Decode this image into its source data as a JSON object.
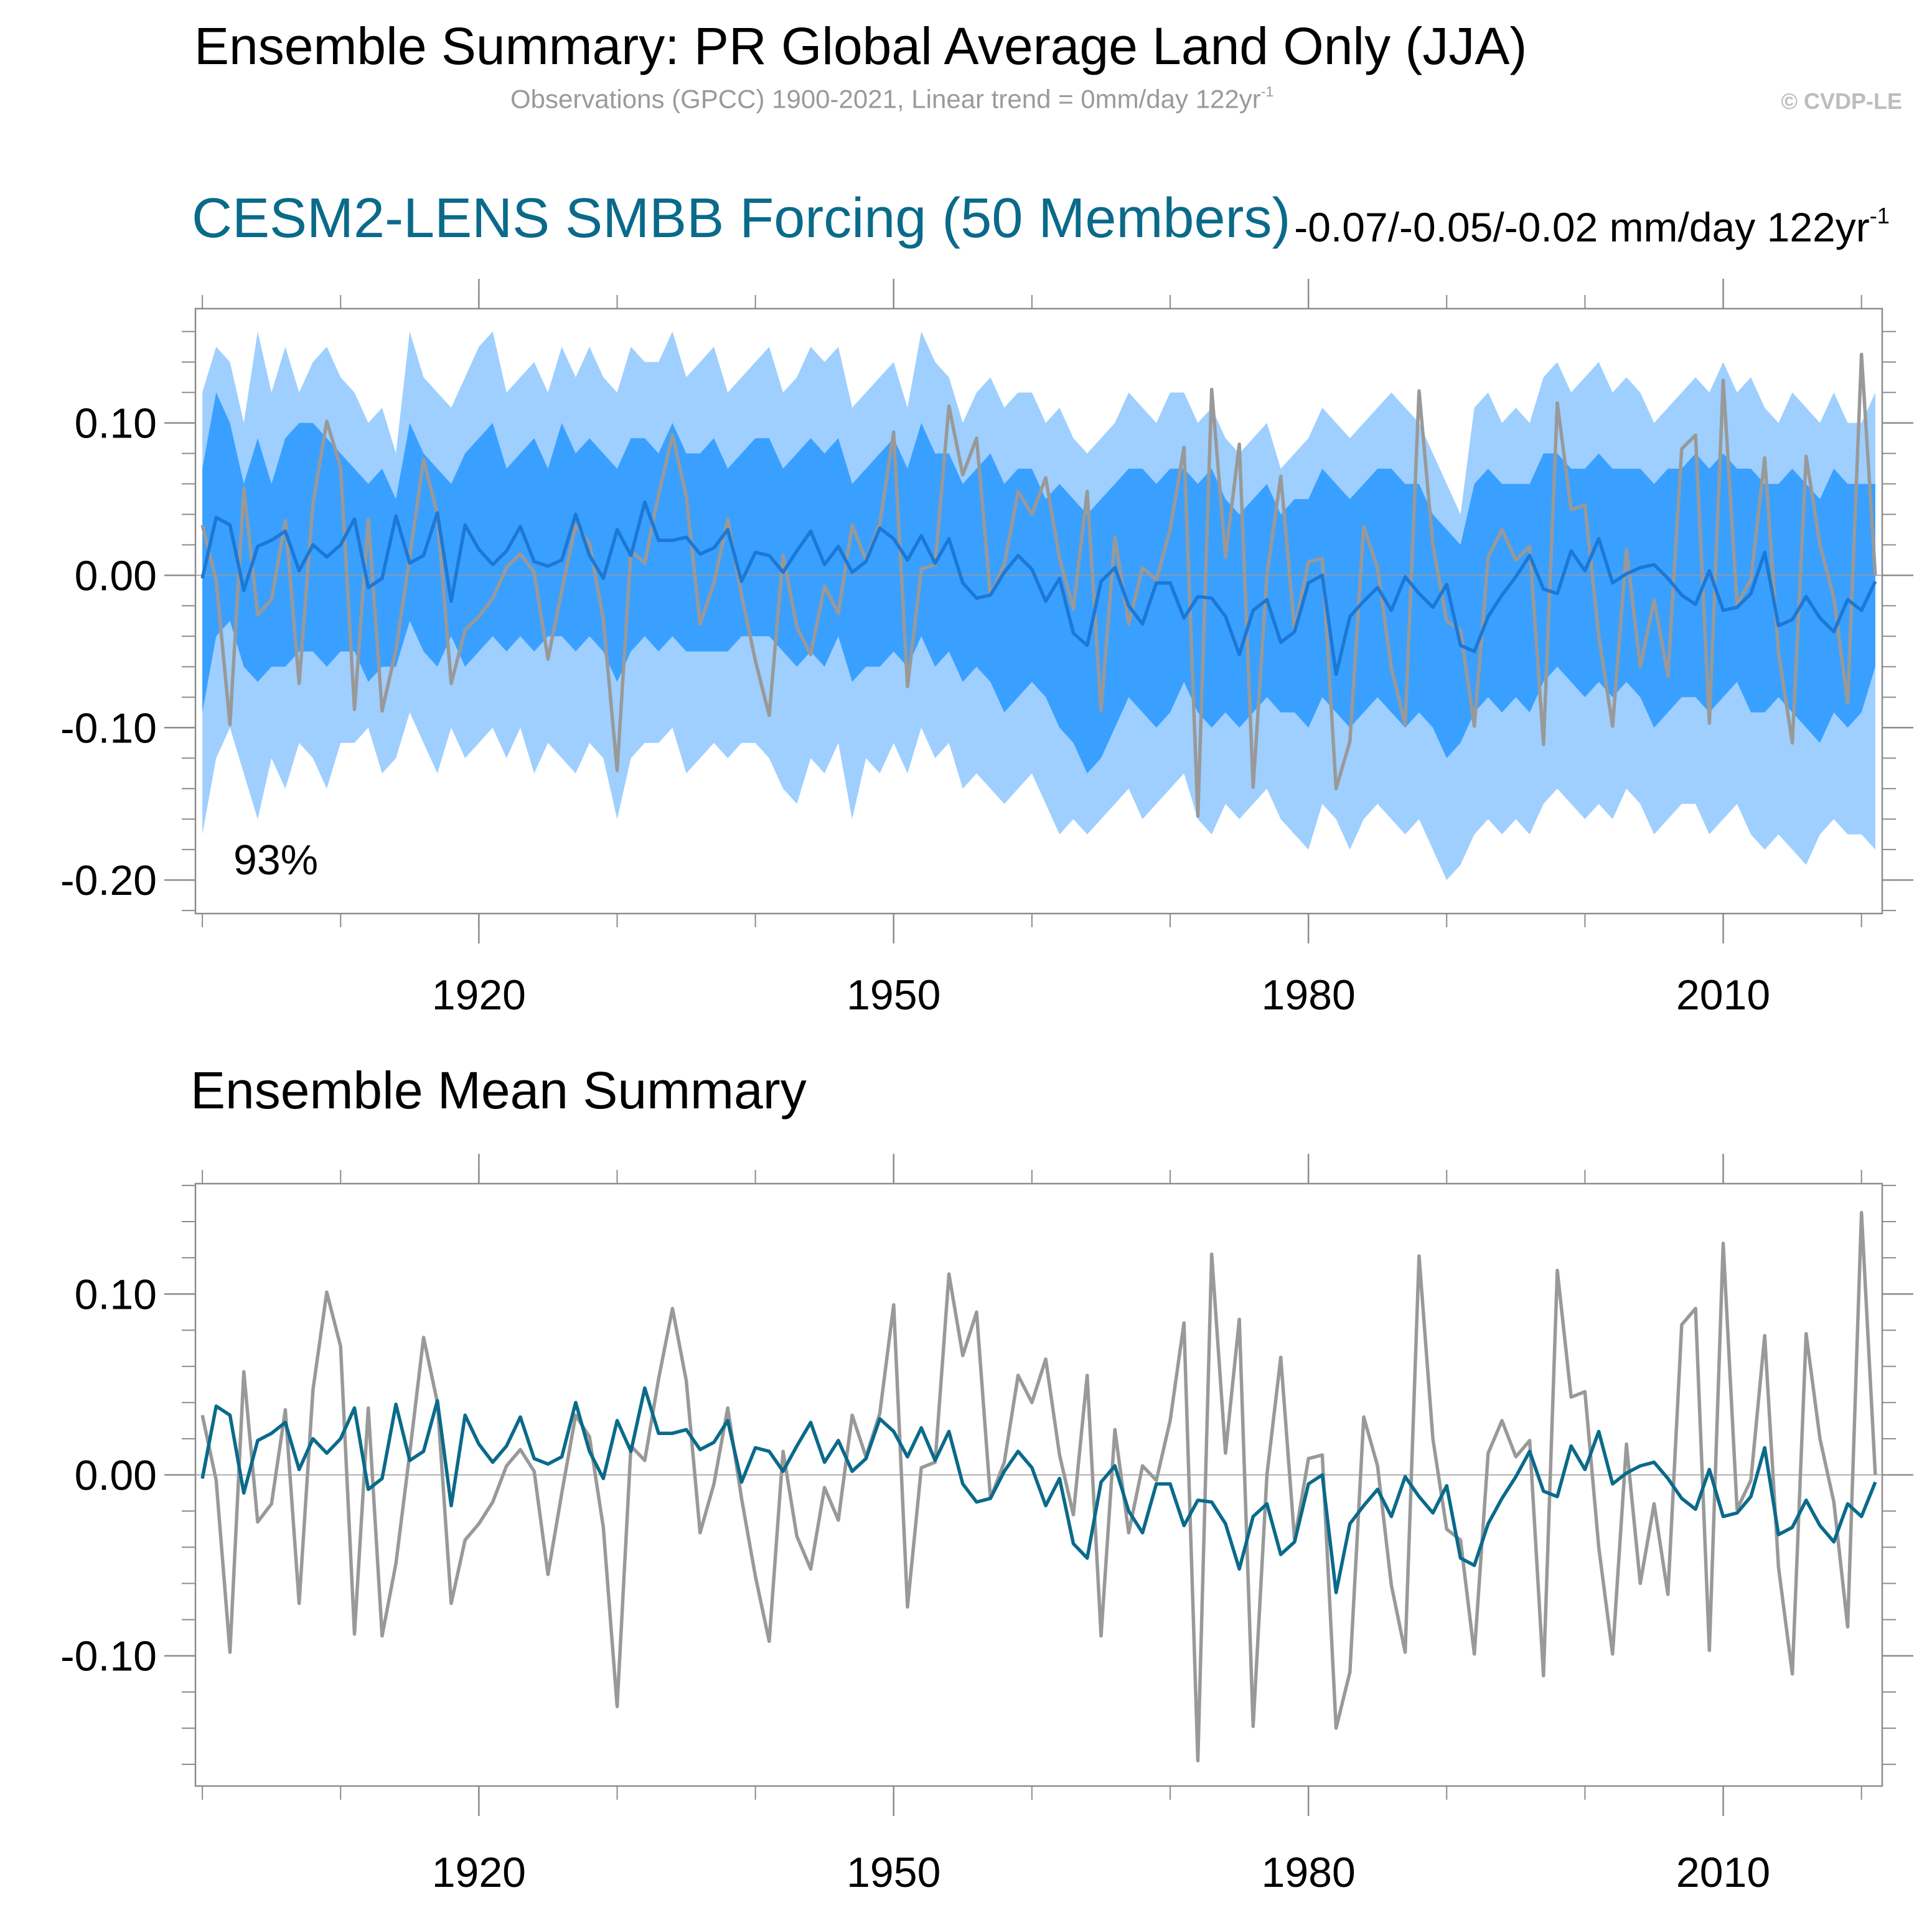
{
  "header": {
    "title": "Ensemble Summary: PR Global Average Land Only (JJA)",
    "subtitle": "Observations (GPCC) 1900-2021, Linear trend = 0mm/day 122yr",
    "subtitle_sup": "-1",
    "copyright": "© CVDP-LE"
  },
  "colors": {
    "band_outer": "#9ecfff",
    "band_inner": "#3aa0ff",
    "ens_mean_top": "#1c78d6",
    "ens_mean_bottom": "#0a6a8a",
    "obs": "#999999",
    "title_blue": "#0a6a8a"
  },
  "chart_data": [
    {
      "type": "area",
      "title": "CESM2-LENS SMBB Forcing (50 Members)",
      "trend_label": "-0.07/-0.05/-0.02 mm/day 122yr",
      "trend_sup": "-1",
      "annotation": "93%",
      "x_start": 1900,
      "x_end": 2021,
      "xlim": [
        1899.5,
        2021.5
      ],
      "ylim": [
        -0.222,
        0.175
      ],
      "yticks": [
        0.1,
        0.0,
        -0.1,
        -0.2
      ],
      "ytick_labels": [
        "0.10",
        "0.00",
        "-0.10",
        "-0.20"
      ],
      "xticks": [
        1920,
        1950,
        1980,
        2010
      ],
      "xtick_labels": [
        "1920",
        "1950",
        "1980",
        "2010"
      ],
      "series": [
        {
          "name": "ensemble-max",
          "role": "band_outer_upper",
          "values": [
            0.12,
            0.15,
            0.14,
            0.1,
            0.16,
            0.12,
            0.15,
            0.12,
            0.14,
            0.15,
            0.13,
            0.12,
            0.1,
            0.11,
            0.08,
            0.16,
            0.13,
            0.12,
            0.11,
            0.13,
            0.15,
            0.16,
            0.12,
            0.13,
            0.14,
            0.12,
            0.15,
            0.13,
            0.15,
            0.13,
            0.12,
            0.15,
            0.14,
            0.14,
            0.16,
            0.13,
            0.14,
            0.15,
            0.12,
            0.13,
            0.14,
            0.15,
            0.12,
            0.13,
            0.15,
            0.14,
            0.15,
            0.11,
            0.12,
            0.13,
            0.14,
            0.11,
            0.16,
            0.14,
            0.13,
            0.1,
            0.12,
            0.13,
            0.11,
            0.12,
            0.12,
            0.1,
            0.11,
            0.09,
            0.08,
            0.09,
            0.1,
            0.12,
            0.11,
            0.1,
            0.12,
            0.12,
            0.1,
            0.11,
            0.09,
            0.08,
            0.09,
            0.1,
            0.07,
            0.08,
            0.09,
            0.11,
            0.1,
            0.09,
            0.1,
            0.11,
            0.12,
            0.11,
            0.1,
            0.08,
            0.06,
            0.04,
            0.11,
            0.12,
            0.1,
            0.11,
            0.1,
            0.13,
            0.14,
            0.12,
            0.13,
            0.14,
            0.12,
            0.13,
            0.12,
            0.1,
            0.11,
            0.12,
            0.13,
            0.12,
            0.14,
            0.12,
            0.13,
            0.11,
            0.1,
            0.12,
            0.11,
            0.1,
            0.12,
            0.1,
            0.1,
            0.12
          ]
        },
        {
          "name": "ensemble-p90",
          "role": "band_inner_upper",
          "values": [
            0.07,
            0.12,
            0.1,
            0.06,
            0.09,
            0.06,
            0.09,
            0.1,
            0.1,
            0.09,
            0.08,
            0.07,
            0.06,
            0.07,
            0.05,
            0.1,
            0.08,
            0.07,
            0.06,
            0.08,
            0.09,
            0.1,
            0.07,
            0.08,
            0.09,
            0.07,
            0.1,
            0.08,
            0.09,
            0.08,
            0.07,
            0.09,
            0.09,
            0.08,
            0.1,
            0.08,
            0.08,
            0.09,
            0.07,
            0.08,
            0.09,
            0.09,
            0.07,
            0.08,
            0.09,
            0.08,
            0.09,
            0.06,
            0.07,
            0.08,
            0.09,
            0.07,
            0.1,
            0.08,
            0.08,
            0.06,
            0.07,
            0.08,
            0.06,
            0.07,
            0.07,
            0.05,
            0.06,
            0.05,
            0.04,
            0.05,
            0.06,
            0.07,
            0.07,
            0.06,
            0.07,
            0.07,
            0.06,
            0.07,
            0.05,
            0.04,
            0.05,
            0.06,
            0.04,
            0.05,
            0.05,
            0.07,
            0.06,
            0.05,
            0.06,
            0.07,
            0.07,
            0.06,
            0.06,
            0.04,
            0.03,
            0.02,
            0.06,
            0.07,
            0.06,
            0.06,
            0.06,
            0.08,
            0.08,
            0.07,
            0.07,
            0.08,
            0.07,
            0.07,
            0.07,
            0.06,
            0.07,
            0.07,
            0.08,
            0.07,
            0.08,
            0.07,
            0.07,
            0.06,
            0.06,
            0.07,
            0.06,
            0.05,
            0.07,
            0.06,
            0.06,
            0.06
          ]
        },
        {
          "name": "ensemble-p10",
          "role": "band_inner_lower",
          "values": [
            -0.09,
            -0.04,
            -0.03,
            -0.06,
            -0.07,
            -0.06,
            -0.06,
            -0.05,
            -0.05,
            -0.06,
            -0.05,
            -0.05,
            -0.07,
            -0.06,
            -0.06,
            -0.03,
            -0.05,
            -0.06,
            -0.04,
            -0.06,
            -0.05,
            -0.04,
            -0.05,
            -0.04,
            -0.05,
            -0.04,
            -0.04,
            -0.05,
            -0.04,
            -0.05,
            -0.07,
            -0.05,
            -0.04,
            -0.05,
            -0.04,
            -0.05,
            -0.05,
            -0.05,
            -0.05,
            -0.04,
            -0.04,
            -0.04,
            -0.05,
            -0.06,
            -0.05,
            -0.06,
            -0.04,
            -0.07,
            -0.06,
            -0.06,
            -0.05,
            -0.06,
            -0.04,
            -0.06,
            -0.05,
            -0.07,
            -0.06,
            -0.07,
            -0.09,
            -0.08,
            -0.07,
            -0.08,
            -0.1,
            -0.11,
            -0.13,
            -0.12,
            -0.1,
            -0.08,
            -0.09,
            -0.1,
            -0.09,
            -0.07,
            -0.09,
            -0.1,
            -0.09,
            -0.1,
            -0.09,
            -0.08,
            -0.09,
            -0.09,
            -0.1,
            -0.08,
            -0.09,
            -0.1,
            -0.09,
            -0.08,
            -0.09,
            -0.1,
            -0.09,
            -0.1,
            -0.12,
            -0.11,
            -0.09,
            -0.08,
            -0.09,
            -0.08,
            -0.09,
            -0.07,
            -0.06,
            -0.07,
            -0.08,
            -0.07,
            -0.08,
            -0.07,
            -0.08,
            -0.1,
            -0.09,
            -0.08,
            -0.08,
            -0.09,
            -0.08,
            -0.07,
            -0.09,
            -0.09,
            -0.08,
            -0.09,
            -0.1,
            -0.11,
            -0.09,
            -0.1,
            -0.09,
            -0.06
          ]
        },
        {
          "name": "ensemble-min",
          "role": "band_outer_lower",
          "values": [
            -0.17,
            -0.12,
            -0.1,
            -0.13,
            -0.16,
            -0.12,
            -0.14,
            -0.11,
            -0.12,
            -0.14,
            -0.11,
            -0.11,
            -0.1,
            -0.13,
            -0.12,
            -0.09,
            -0.11,
            -0.13,
            -0.1,
            -0.12,
            -0.11,
            -0.1,
            -0.12,
            -0.1,
            -0.13,
            -0.11,
            -0.12,
            -0.13,
            -0.11,
            -0.12,
            -0.16,
            -0.12,
            -0.11,
            -0.11,
            -0.1,
            -0.13,
            -0.12,
            -0.11,
            -0.12,
            -0.11,
            -0.11,
            -0.12,
            -0.14,
            -0.15,
            -0.12,
            -0.13,
            -0.11,
            -0.16,
            -0.12,
            -0.13,
            -0.11,
            -0.13,
            -0.1,
            -0.12,
            -0.11,
            -0.14,
            -0.13,
            -0.14,
            -0.15,
            -0.14,
            -0.13,
            -0.15,
            -0.17,
            -0.16,
            -0.17,
            -0.16,
            -0.15,
            -0.14,
            -0.16,
            -0.15,
            -0.14,
            -0.13,
            -0.16,
            -0.17,
            -0.15,
            -0.16,
            -0.15,
            -0.14,
            -0.16,
            -0.17,
            -0.18,
            -0.15,
            -0.16,
            -0.18,
            -0.16,
            -0.15,
            -0.16,
            -0.17,
            -0.16,
            -0.18,
            -0.2,
            -0.19,
            -0.17,
            -0.16,
            -0.17,
            -0.16,
            -0.17,
            -0.15,
            -0.14,
            -0.15,
            -0.16,
            -0.15,
            -0.16,
            -0.14,
            -0.15,
            -0.17,
            -0.16,
            -0.15,
            -0.15,
            -0.17,
            -0.16,
            -0.15,
            -0.17,
            -0.18,
            -0.17,
            -0.18,
            -0.19,
            -0.17,
            -0.16,
            -0.17,
            -0.17,
            -0.18
          ]
        },
        {
          "name": "ensemble-mean",
          "role": "ens_mean_top",
          "values": [
            -0.002,
            0.038,
            0.033,
            -0.01,
            0.019,
            0.023,
            0.029,
            0.003,
            0.02,
            0.012,
            0.02,
            0.037,
            -0.008,
            -0.002,
            0.039,
            0.008,
            0.013,
            0.041,
            -0.017,
            0.033,
            0.017,
            0.007,
            0.016,
            0.032,
            0.009,
            0.006,
            0.01,
            0.04,
            0.013,
            -0.002,
            0.03,
            0.013,
            0.048,
            0.023,
            0.023,
            0.025,
            0.014,
            0.018,
            0.03,
            -0.004,
            0.015,
            0.013,
            0.002,
            0.016,
            0.029,
            0.007,
            0.019,
            0.002,
            0.009,
            0.031,
            0.024,
            0.01,
            0.026,
            0.008,
            0.024,
            -0.005,
            -0.015,
            -0.013,
            0.002,
            0.013,
            0.004,
            -0.017,
            -0.002,
            -0.038,
            -0.046,
            -0.004,
            0.005,
            -0.02,
            -0.032,
            -0.005,
            -0.005,
            -0.028,
            -0.014,
            -0.015,
            -0.027,
            -0.052,
            -0.023,
            -0.016,
            -0.044,
            -0.037,
            -0.005,
            0.0,
            -0.065,
            -0.027,
            -0.017,
            -0.008,
            -0.023,
            -0.001,
            -0.012,
            -0.021,
            -0.006,
            -0.046,
            -0.05,
            -0.027,
            -0.013,
            -0.001,
            0.013,
            -0.009,
            -0.012,
            0.016,
            0.003,
            0.024,
            -0.005,
            0.001,
            0.005,
            0.007,
            -0.002,
            -0.013,
            -0.019,
            0.003,
            -0.023,
            -0.021,
            -0.012,
            0.015,
            -0.033,
            -0.029,
            -0.014,
            -0.028,
            -0.037,
            -0.016,
            -0.023,
            -0.004
          ]
        },
        {
          "name": "observations",
          "role": "obs",
          "values": [
            0.033,
            -0.003,
            -0.098,
            0.057,
            -0.026,
            -0.016,
            0.036,
            -0.071,
            0.047,
            0.101,
            0.071,
            -0.088,
            0.037,
            -0.089,
            -0.049,
            0.012,
            0.076,
            0.04,
            -0.071,
            -0.036,
            -0.027,
            -0.015,
            0.005,
            0.014,
            0.002,
            -0.055,
            -0.01,
            0.033,
            0.021,
            -0.029,
            -0.128,
            0.016,
            0.008,
            0.053,
            0.092,
            0.052,
            -0.032,
            -0.005,
            0.037,
            -0.013,
            -0.056,
            -0.092,
            0.013,
            -0.034,
            -0.052,
            -0.007,
            -0.025,
            0.033,
            0.01,
            0.034,
            0.094,
            -0.073,
            0.004,
            0.007,
            0.111,
            0.066,
            0.09,
            -0.013,
            0.007,
            0.055,
            0.04,
            0.064,
            0.011,
            -0.022,
            0.055,
            -0.089,
            0.025,
            -0.032,
            0.005,
            -0.003,
            0.03,
            0.084,
            -0.158,
            0.122,
            0.012,
            0.086,
            -0.139,
            0.0,
            0.065,
            -0.036,
            0.009,
            0.011,
            -0.14,
            -0.109,
            0.032,
            0.005,
            -0.061,
            -0.098,
            0.121,
            0.02,
            -0.03,
            -0.036,
            -0.099,
            0.012,
            0.03,
            0.01,
            0.019,
            -0.111,
            0.113,
            0.043,
            0.046,
            -0.04,
            -0.099,
            0.017,
            -0.06,
            -0.016,
            -0.066,
            0.083,
            0.092,
            -0.097,
            0.128,
            -0.019,
            -0.003,
            0.077,
            -0.051,
            -0.11,
            0.078,
            0.02,
            -0.015,
            -0.084,
            0.145,
            0.0
          ]
        }
      ]
    },
    {
      "type": "line",
      "title": "Ensemble Mean Summary",
      "x_start": 1900,
      "x_end": 2021,
      "xlim": [
        1899.5,
        2021.5
      ],
      "ylim": [
        -0.172,
        0.161
      ],
      "yticks": [
        0.1,
        0.0,
        -0.1
      ],
      "ytick_labels": [
        "0.10",
        "0.00",
        "-0.10"
      ],
      "xticks": [
        1920,
        1950,
        1980,
        2010
      ],
      "xtick_labels": [
        "1920",
        "1950",
        "1980",
        "2010"
      ],
      "series": [
        {
          "name": "observations",
          "role": "obs",
          "ref": "observations"
        },
        {
          "name": "ensemble-mean",
          "role": "ens_mean_bottom",
          "ref": "ensemble-mean"
        }
      ]
    }
  ]
}
